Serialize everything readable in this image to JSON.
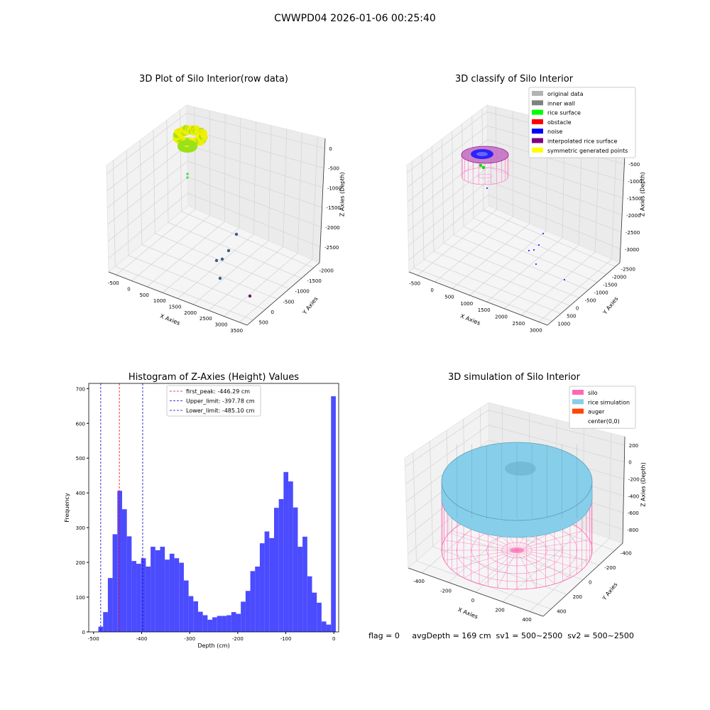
{
  "figure": {
    "suptitle": "CWWPD04 2026-01-06 00:25:40",
    "status_line": "flag = 0     avgDepth = 169 cm  sv1 = 500~2500  sv2 = 500~2500"
  },
  "chart_data": [
    {
      "type": "scatter",
      "title": "3D Plot of Silo Interior(row data)",
      "xlabel": "X Axies",
      "ylabel": "Y Axies",
      "zlabel": "Z Axies (Depth)",
      "x_ticks": [
        "-500",
        "0",
        "500",
        "1000",
        "1500",
        "2000",
        "2500",
        "3000",
        "3500"
      ],
      "y_ticks": [
        "500",
        "0",
        "-500",
        "-1000",
        "-1500",
        "-2000"
      ],
      "z_ticks": [
        "0",
        "-500",
        "-1000",
        "-1500",
        "-2000",
        "-2500"
      ],
      "colors": {
        "surface_high": "#f2ef00",
        "surface_low": "#9be11a",
        "scattered": "#3a5f8a"
      }
    },
    {
      "type": "scatter",
      "title": "3D classify of Silo Interior",
      "xlabel": "X Axies",
      "ylabel": "Y Axies",
      "zlabel": "Z Axies (Depth)",
      "x_ticks": [
        "-500",
        "0",
        "500",
        "1000",
        "1500",
        "2000",
        "2500",
        "3000"
      ],
      "y_ticks": [
        "1000",
        "500",
        "0",
        "-500",
        "-1000",
        "-1500",
        "-2000",
        "-2500"
      ],
      "z_ticks": [
        "0",
        "-500",
        "-1000",
        "-1500",
        "-2000",
        "-2500",
        "-3000"
      ],
      "legend": [
        {
          "label": "original data",
          "color": "#b3b3b3"
        },
        {
          "label": "inner wall",
          "color": "#808080"
        },
        {
          "label": "rice surface",
          "color": "#00ff00"
        },
        {
          "label": "obstacle",
          "color": "#ff0000"
        },
        {
          "label": "noise",
          "color": "#0000ff"
        },
        {
          "label": "interpolated rice surface",
          "color": "#800080"
        },
        {
          "label": "symmetric generated points",
          "color": "#ffff00"
        }
      ],
      "legend_position": "top-right"
    },
    {
      "type": "bar",
      "title": "Histogram of Z-Axies (Height) Values",
      "xlabel": "Depth (cm)",
      "ylabel": "Frequency",
      "bar_color": "#4b4bff",
      "xlim": [
        -510,
        10
      ],
      "ylim": [
        0,
        715
      ],
      "x_ticks": [
        -500,
        -400,
        -300,
        -200,
        -100,
        0
      ],
      "y_ticks": [
        0,
        100,
        200,
        300,
        400,
        500,
        600,
        700
      ],
      "bin_start": -490,
      "bin_width": 9.88,
      "values": [
        15,
        57,
        155,
        281,
        406,
        353,
        275,
        204,
        196,
        212,
        188,
        245,
        235,
        245,
        208,
        225,
        212,
        199,
        148,
        103,
        88,
        58,
        48,
        35,
        42,
        46,
        46,
        48,
        57,
        52,
        87,
        118,
        175,
        188,
        255,
        289,
        270,
        357,
        382,
        460,
        433,
        358,
        245,
        274,
        160,
        113,
        84,
        30,
        21,
        678
      ],
      "vlines": [
        {
          "label": "first_peak: -446.29 cm",
          "x": -446.29,
          "color": "#ff0000"
        },
        {
          "label": "Upper_limit: -397.78 cm",
          "x": -397.78,
          "color": "#0000cc"
        },
        {
          "label": "Lower_limit: -485.10 cm",
          "x": -485.1,
          "color": "#0000cc"
        }
      ],
      "legend_position": "top-center"
    },
    {
      "type": "area",
      "title": "3D simulation of Silo Interior",
      "xlabel": "X Axies",
      "ylabel": "Y Axies",
      "zlabel": "Z Axies (Depth)",
      "x_ticks": [
        "-400",
        "-200",
        "0",
        "200",
        "400"
      ],
      "y_ticks": [
        "400",
        "200",
        "0",
        "-200",
        "-400"
      ],
      "z_ticks": [
        "200",
        "0",
        "-200",
        "-400",
        "-600",
        "-800"
      ],
      "legend": [
        {
          "label": "silo",
          "color": "#ff69b4"
        },
        {
          "label": "rice simulation",
          "color": "#87ceeb"
        },
        {
          "label": "auger",
          "color": "#ff4500"
        },
        {
          "label": "center(0,0)",
          "color": "#ffffff"
        }
      ],
      "legend_position": "top-right"
    }
  ]
}
